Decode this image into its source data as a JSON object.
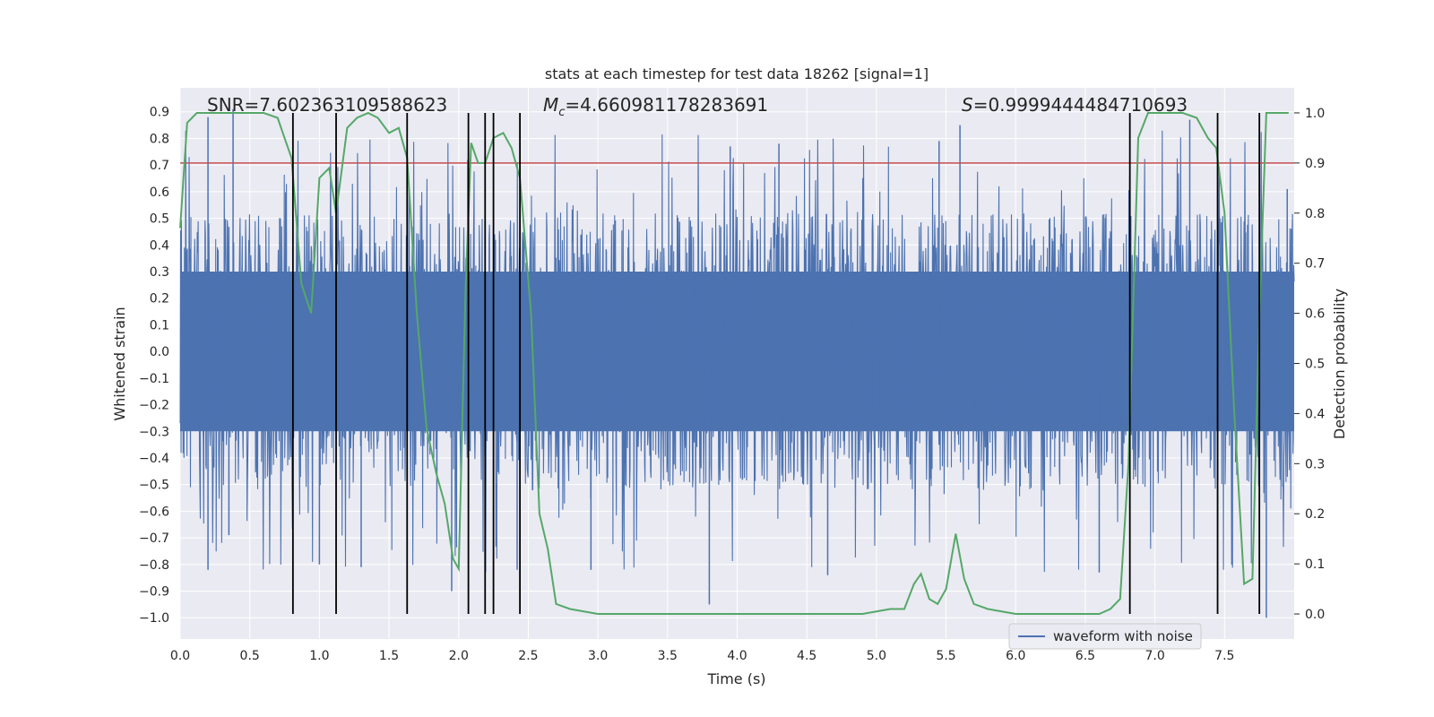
{
  "chart_data": {
    "type": "line",
    "title": "stats at each timestep for test data 18262 [signal=1]",
    "xlabel": "Time (s)",
    "ylabel": "Whitened strain",
    "ylabel_right": "Detection probability",
    "xlim": [
      0.0,
      8.0
    ],
    "ylim": [
      -1.08,
      0.99
    ],
    "ylim_right": [
      -0.05,
      1.05
    ],
    "x_ticks": [
      0.0,
      0.5,
      1.0,
      1.5,
      2.0,
      2.5,
      3.0,
      3.5,
      4.0,
      4.5,
      5.0,
      5.5,
      6.0,
      6.5,
      7.0,
      7.5
    ],
    "x_tick_labels": [
      "0.0",
      "0.5",
      "1.0",
      "1.5",
      "2.0",
      "2.5",
      "3.0",
      "3.5",
      "4.0",
      "4.5",
      "5.0",
      "5.5",
      "6.0",
      "6.5",
      "7.0",
      "7.5"
    ],
    "y_ticks": [
      0.9,
      0.8,
      0.7,
      0.6,
      0.5,
      0.4,
      0.3,
      0.2,
      0.1,
      0.0,
      -0.1,
      -0.2,
      -0.3,
      -0.4,
      -0.5,
      -0.6,
      -0.7,
      -0.8,
      -0.9,
      -1.0
    ],
    "y_tick_labels": [
      "0.9",
      "0.8",
      "0.7",
      "0.6",
      "0.5",
      "0.4",
      "0.3",
      "0.2",
      "0.1",
      "0.0",
      "−0.1",
      "−0.2",
      "−0.3",
      "−0.4",
      "−0.5",
      "−0.6",
      "−0.7",
      "−0.8",
      "−0.9",
      "−1.0"
    ],
    "y_right_ticks": [
      1.0,
      0.9,
      0.8,
      0.7,
      0.6,
      0.5,
      0.4,
      0.3,
      0.2,
      0.1,
      0.0
    ],
    "y_right_tick_labels": [
      "1.0",
      "0.9",
      "0.8",
      "0.7",
      "0.6",
      "0.5",
      "0.4",
      "0.3",
      "0.2",
      "0.1",
      "0.0"
    ],
    "annotations": {
      "snr": "SNR=7.602363109588623",
      "mc_symbol": "M",
      "mc_subscript": "c",
      "mc_value": "=4.660981178283691",
      "s_symbol": "S",
      "s_value": "=0.9999444484710693"
    },
    "threshold": {
      "value": 0.9,
      "axis": "right",
      "color": "#c44e52"
    },
    "event_lines": [
      0.81,
      1.12,
      1.63,
      2.07,
      2.19,
      2.25,
      2.44,
      6.82,
      7.45,
      7.75
    ],
    "waveform": {
      "name": "waveform with noise",
      "color": "#4c72b0",
      "core_amplitude": 0.3,
      "spikes": [
        {
          "x": 0.05,
          "y": 0.38
        },
        {
          "x": 0.2,
          "y": 0.88
        },
        {
          "x": 0.38,
          "y": 0.91
        },
        {
          "x": 0.2,
          "y": -0.82
        },
        {
          "x": 0.35,
          "y": -0.69
        },
        {
          "x": 1.0,
          "y": -0.8
        },
        {
          "x": 1.3,
          "y": -0.81
        },
        {
          "x": 1.95,
          "y": -0.9
        },
        {
          "x": 2.42,
          "y": -0.82
        },
        {
          "x": 2.95,
          "y": -0.82
        },
        {
          "x": 3.8,
          "y": -0.95
        },
        {
          "x": 4.65,
          "y": -0.84
        },
        {
          "x": 3.95,
          "y": 0.77
        },
        {
          "x": 4.3,
          "y": 0.78
        },
        {
          "x": 5.45,
          "y": 0.79
        },
        {
          "x": 5.6,
          "y": 0.85
        },
        {
          "x": 7.25,
          "y": 0.87
        },
        {
          "x": 7.8,
          "y": -1.0
        },
        {
          "x": 6.6,
          "y": -0.83
        },
        {
          "x": 7.95,
          "y": 0.61
        }
      ]
    },
    "detection_probability": {
      "color": "#55a868",
      "x": [
        0.0,
        0.05,
        0.12,
        0.2,
        0.3,
        0.4,
        0.5,
        0.6,
        0.7,
        0.75,
        0.8,
        0.87,
        0.94,
        1.0,
        1.07,
        1.12,
        1.2,
        1.27,
        1.35,
        1.42,
        1.5,
        1.57,
        1.63,
        1.7,
        1.77,
        1.84,
        1.9,
        1.96,
        2.0,
        2.05,
        2.09,
        2.14,
        2.19,
        2.25,
        2.32,
        2.38,
        2.44,
        2.52,
        2.58,
        2.64,
        2.7,
        2.8,
        3.0,
        3.5,
        3.8,
        4.0,
        4.5,
        4.9,
        5.1,
        5.15,
        5.2,
        5.27,
        5.32,
        5.38,
        5.44,
        5.5,
        5.57,
        5.63,
        5.7,
        5.8,
        6.0,
        6.1,
        6.3,
        6.6,
        6.68,
        6.75,
        6.81,
        6.88,
        6.95,
        7.05,
        7.2,
        7.3,
        7.38,
        7.44,
        7.5,
        7.57,
        7.64,
        7.7,
        7.75,
        7.8,
        7.9,
        7.96
      ],
      "y": [
        0.77,
        0.98,
        1.0,
        1.0,
        1.0,
        1.0,
        1.0,
        1.0,
        0.99,
        0.95,
        0.91,
        0.66,
        0.6,
        0.87,
        0.89,
        0.8,
        0.97,
        0.99,
        1.0,
        0.99,
        0.96,
        0.97,
        0.91,
        0.6,
        0.37,
        0.28,
        0.22,
        0.11,
        0.09,
        0.65,
        0.94,
        0.9,
        0.9,
        0.95,
        0.96,
        0.93,
        0.87,
        0.6,
        0.2,
        0.13,
        0.02,
        0.01,
        0.0,
        0.0,
        0.0,
        0.0,
        0.0,
        0.0,
        0.01,
        0.01,
        0.01,
        0.06,
        0.08,
        0.03,
        0.02,
        0.05,
        0.16,
        0.07,
        0.02,
        0.01,
        0.0,
        0.0,
        0.0,
        0.0,
        0.01,
        0.03,
        0.3,
        0.95,
        1.0,
        1.0,
        1.0,
        0.99,
        0.95,
        0.93,
        0.8,
        0.4,
        0.06,
        0.07,
        0.6,
        1.0,
        1.0,
        1.0
      ]
    },
    "legend": {
      "position": "bottom-right",
      "label": "waveform with noise"
    },
    "grid": true,
    "colors": {
      "background": "#eaeaf2",
      "grid": "#ffffff",
      "event_line": "#000000"
    }
  }
}
